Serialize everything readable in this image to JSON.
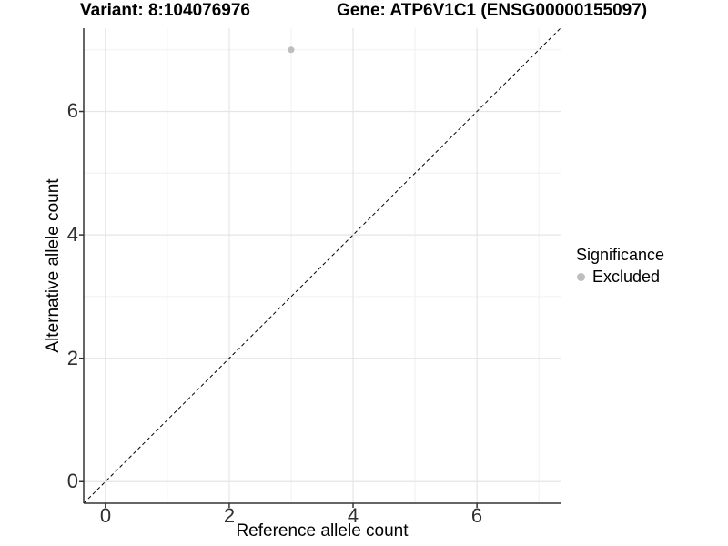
{
  "chart_data": {
    "type": "scatter",
    "title_variant": "Variant: 8:104076976",
    "title_gene": "Gene: ATP6V1C1 (ENSG00000155097)",
    "xlabel": "Reference allele count",
    "ylabel": "Alternative allele count",
    "xlim": [
      -0.35,
      7.35
    ],
    "ylim": [
      -0.35,
      7.35
    ],
    "grid": "major and minor, light grey on white",
    "x_ticks": {
      "values": [
        0,
        2,
        4,
        6
      ],
      "labels": [
        "0",
        "2",
        "4",
        "6"
      ]
    },
    "y_ticks": {
      "values": [
        0,
        2,
        4,
        6
      ],
      "labels": [
        "0",
        "2",
        "4",
        "6"
      ]
    },
    "x_minor_ticks": [
      1,
      3,
      5,
      7
    ],
    "y_minor_ticks": [
      1,
      3,
      5,
      7
    ],
    "series": [
      {
        "name": "Excluded",
        "color": "#bebebe",
        "points": [
          {
            "x": 3,
            "y": 7
          }
        ]
      }
    ],
    "reference_line": {
      "kind": "identity y = x",
      "slope": 1,
      "intercept": 0,
      "style": "dashed",
      "color": "#000000"
    },
    "legend": {
      "title": "Significance",
      "position": "right",
      "items": [
        {
          "label": "Excluded",
          "color": "#bebebe",
          "marker": "circle"
        }
      ]
    },
    "colors": {
      "background": "#ffffff",
      "grid_major": "#e5e5e5",
      "grid_minor": "#f0f0f0",
      "axis_line": "#333333",
      "tick_text": "#303030",
      "point": "#bebebe"
    }
  }
}
